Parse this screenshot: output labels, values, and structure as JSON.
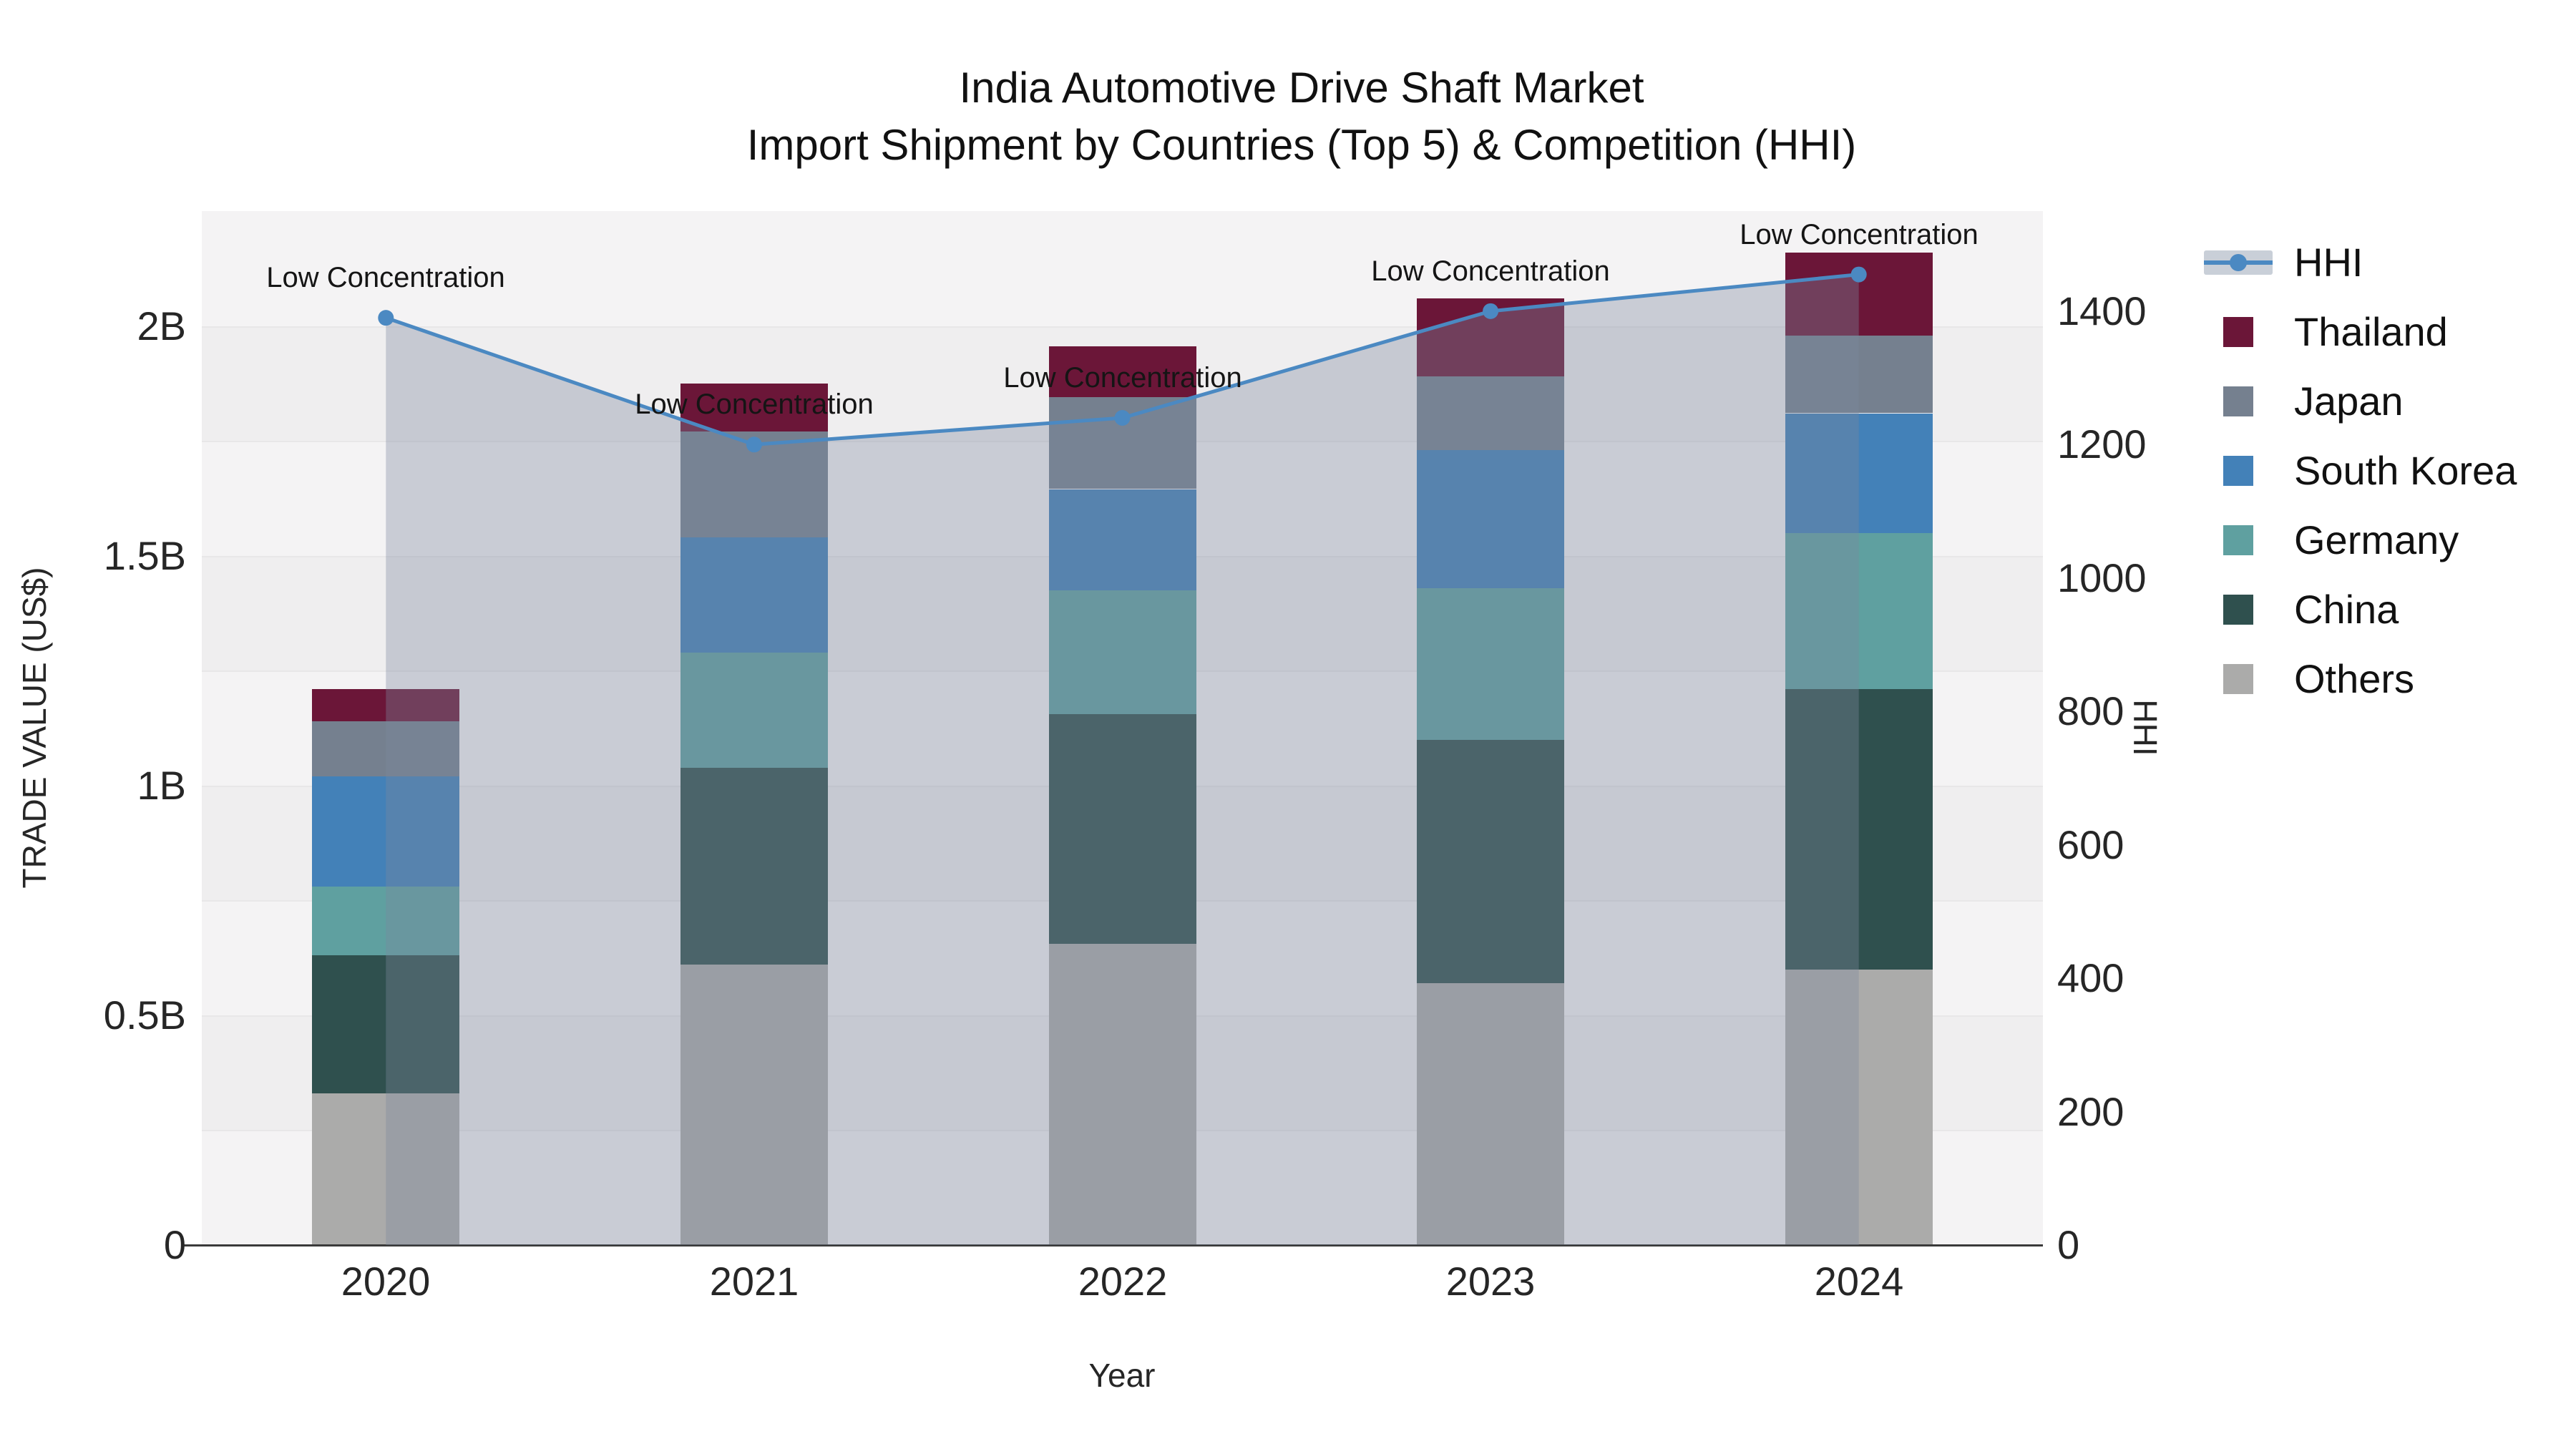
{
  "title": {
    "line1": "India Automotive Drive Shaft Market",
    "line2": "Import Shipment by Countries (Top 5) & Competition (HHI)"
  },
  "chart_data": {
    "type": "bar",
    "subtype": "stacked-bars-with-line-overlay",
    "title": "India Automotive Drive Shaft Market — Import Shipment by Countries (Top 5) & Competition (HHI)",
    "categories": [
      "2020",
      "2021",
      "2022",
      "2023",
      "2024"
    ],
    "stack_order_bottom_up": [
      "Others",
      "China",
      "Germany",
      "South Korea",
      "Japan",
      "Thailand"
    ],
    "series": [
      {
        "name": "Others",
        "color": "#ABABAA",
        "values": [
          0.33,
          0.61,
          0.655,
          0.57,
          0.6
        ]
      },
      {
        "name": "China",
        "color": "#2F504E",
        "values": [
          0.3,
          0.43,
          0.5,
          0.53,
          0.61
        ]
      },
      {
        "name": "Germany",
        "color": "#5FA0A0",
        "values": [
          0.15,
          0.25,
          0.27,
          0.33,
          0.34
        ]
      },
      {
        "name": "South Korea",
        "color": "#4381B8",
        "values": [
          0.24,
          0.25,
          0.22,
          0.3,
          0.26
        ]
      },
      {
        "name": "Japan",
        "color": "#75808F",
        "values": [
          0.12,
          0.23,
          0.2,
          0.16,
          0.17
        ]
      },
      {
        "name": "Thailand",
        "color": "#6B1638",
        "values": [
          0.07,
          0.105,
          0.11,
          0.17,
          0.18
        ]
      }
    ],
    "totals_billion_usd": [
      1.21,
      1.875,
      1.955,
      2.06,
      2.16
    ],
    "line_series": {
      "name": "HHI",
      "color": "#4B89C2",
      "area_fill": "rgba(124,135,158,0.36)",
      "values": [
        1390,
        1200,
        1240,
        1400,
        1455
      ]
    },
    "annotations": [
      {
        "text": "Low Concentration",
        "category": "2020"
      },
      {
        "text": "Low Concentration",
        "category": "2021"
      },
      {
        "text": "Low Concentration",
        "category": "2022"
      },
      {
        "text": "Low Concentration",
        "category": "2023"
      },
      {
        "text": "Low Concentration",
        "category": "2024"
      }
    ],
    "axes": {
      "left": {
        "title": "TRADE VALUE (US$)",
        "max": 2.25,
        "ticks": [
          {
            "value": 0,
            "label": "0"
          },
          {
            "value": 0.5,
            "label": "0.5B"
          },
          {
            "value": 1,
            "label": "1B"
          },
          {
            "value": 1.5,
            "label": "1.5B"
          },
          {
            "value": 2,
            "label": "2B"
          }
        ]
      },
      "right": {
        "title": "HHI",
        "max": 1550,
        "ticks": [
          {
            "value": 0,
            "label": "0"
          },
          {
            "value": 200,
            "label": "200"
          },
          {
            "value": 400,
            "label": "400"
          },
          {
            "value": 600,
            "label": "600"
          },
          {
            "value": 800,
            "label": "800"
          },
          {
            "value": 1000,
            "label": "1000"
          },
          {
            "value": 1200,
            "label": "1200"
          },
          {
            "value": 1400,
            "label": "1400"
          }
        ]
      },
      "x": {
        "title": "Year"
      }
    },
    "grid": {
      "step": 0.25,
      "on": true,
      "band_light": "#F4F3F4",
      "band_dark": "#EFEEEF",
      "line_color": "#E8E7E8"
    }
  },
  "legend": {
    "items": [
      {
        "label": "HHI",
        "type": "line",
        "color": "#4B89C2",
        "band_color": "#C9CFD8"
      },
      {
        "label": "Thailand",
        "type": "swatch",
        "color": "#6B1638"
      },
      {
        "label": "Japan",
        "type": "swatch",
        "color": "#75808F"
      },
      {
        "label": "South Korea",
        "type": "swatch",
        "color": "#4381B8"
      },
      {
        "label": "Germany",
        "type": "swatch",
        "color": "#5FA0A0"
      },
      {
        "label": "China",
        "type": "swatch",
        "color": "#2F504E"
      },
      {
        "label": "Others",
        "type": "swatch",
        "color": "#ABABAA"
      }
    ]
  }
}
